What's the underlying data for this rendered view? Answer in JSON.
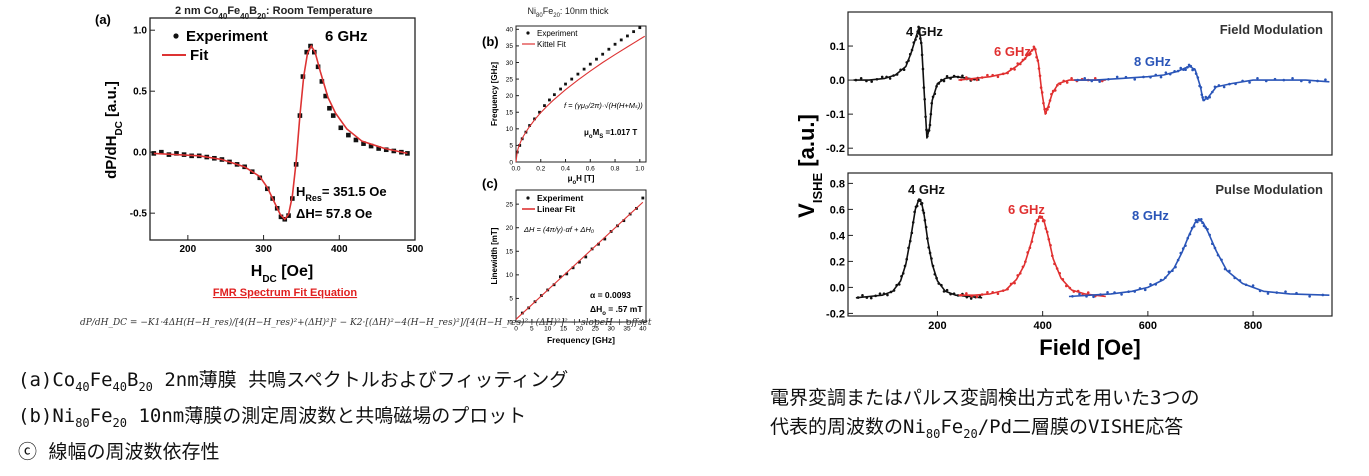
{
  "left_figure": {
    "panel_a": {
      "panel_label": "(a)",
      "title_pre": "2 nm Co",
      "title_sub1": "40",
      "title_mid": "Fe",
      "title_sub2": "40",
      "title_b": "B",
      "title_sub3": "20",
      "title_post": ": Room Temperature",
      "legend_experiment": "Experiment",
      "legend_fit": "Fit",
      "frequency_label": "6 GHz",
      "hres_pre": "H",
      "hres_sub": "Res",
      "hres_post": "= 351.5 Oe",
      "dh_text": "ΔH= 57.8 Oe",
      "ylabel": "dP/dH",
      "ylabel_sub": "DC",
      "ylabel_post": " [a.u.]",
      "xlabel": "H",
      "xlabel_sub": "DC",
      "xlabel_post": " [Oe]",
      "fit_equation_link": "FMR Spectrum Fit Equation"
    },
    "panel_b": {
      "panel_label": "(b)",
      "title_pre": "Ni",
      "title_sub1": "80",
      "title_mid": "Fe",
      "title_sub2": "20",
      "title_post": ": 10nm thick",
      "legend_experiment": "Experiment",
      "legend_fit": "Kittel Fit",
      "equation": "f = (γμ₀/2π)·√(H(H+Mₛ))",
      "ms_pre": "μ",
      "ms_sub1": "o",
      "ms_mid": "M",
      "ms_sub2": "S",
      "ms_post": " =1.017 T",
      "ylabel": "Frequency [GHz]",
      "xlabel_pre": "μ",
      "xlabel_sub": "o",
      "xlabel_post": "H [T]"
    },
    "panel_c": {
      "panel_label": "(c)",
      "legend_experiment": "Experiment",
      "legend_fit": "Linear Fit",
      "equation": "ΔH = (4π/γ)·αf + ΔH₀",
      "alpha_text": "α = 0.0093",
      "dh0_pre": "ΔH",
      "dh0_sub": "o",
      "dh0_post": " = .57 mT",
      "ylabel": "Linewidth [mT]",
      "xlabel": "Frequency [GHz]"
    },
    "bottom_equation": "dP/dH_DC = −K1·4ΔH(H−H_res)/[4(H−H_res)²+(ΔH)²]² − K2·[(ΔH)²−4(H−H_res)²]/[4(H−H_res)²+(ΔH)²]² + slopeH + offset"
  },
  "right_figure": {
    "top_title": "Field Modulation",
    "bottom_title": "Pulse Modulation",
    "ylabel_pre": "V",
    "ylabel_sub": "ISHE",
    "ylabel_post": " [a.u.]",
    "xlabel": "Field [Oe]",
    "freq_labels": [
      "4 GHz",
      "6 GHz",
      "8 GHz"
    ],
    "colors": {
      "4 GHz": "#111111",
      "6 GHz": "#e03030",
      "8 GHz": "#2a55b8"
    }
  },
  "captions": {
    "left_line1_pre": "(a)Co",
    "left_line1_s1": "40",
    "left_line1_m1": "Fe",
    "left_line1_s2": "40",
    "left_line1_m2": "B",
    "left_line1_s3": "20",
    "left_line1_post": " 2nm薄膜 共鳴スペクトルおよびフィッティング",
    "left_line2_pre": "(b)Ni",
    "left_line2_s1": "80",
    "left_line2_m1": "Fe",
    "left_line2_s2": "20",
    "left_line2_post": " 10nm薄膜の測定周波数と共鳴磁場のプロット",
    "left_line3": "ⓒ 線幅の周波数依存性",
    "right_line1": "電界変調またはパルス変調検出方式を用いた3つの",
    "right_line2_pre": "代表的周波数のNi",
    "right_line2_s1": "80",
    "right_line2_m1": "Fe",
    "right_line2_s2": "20",
    "right_line2_post": "/Pd二層膜のVISHE応答"
  },
  "chart_data": [
    {
      "id": "a",
      "type": "line",
      "title": "2 nm Co40Fe40B20: Room Temperature",
      "xlabel": "HDC [Oe]",
      "ylabel": "dP/dHDC [a.u.]",
      "xlim": [
        150,
        500
      ],
      "ylim": [
        -0.72,
        1.1
      ],
      "xticks": [
        200,
        300,
        400,
        500
      ],
      "yticks": [
        -0.5,
        0.0,
        0.5,
        1.0
      ],
      "ytick_labels": [
        "-0.5",
        "0.0",
        "0.5",
        "1.0"
      ],
      "series": [
        {
          "name": "Experiment",
          "style": "points",
          "x": [
            155,
            165,
            175,
            185,
            195,
            205,
            215,
            225,
            235,
            245,
            255,
            265,
            275,
            285,
            295,
            305,
            312,
            318,
            323,
            328,
            333,
            338,
            343,
            348,
            352,
            357,
            362,
            367,
            372,
            377,
            382,
            387,
            392,
            402,
            412,
            422,
            432,
            442,
            452,
            462,
            472,
            482,
            490
          ],
          "y": [
            -0.01,
            0.0,
            -0.02,
            -0.01,
            -0.02,
            -0.03,
            -0.03,
            -0.04,
            -0.05,
            -0.06,
            -0.08,
            -0.1,
            -0.12,
            -0.16,
            -0.21,
            -0.3,
            -0.38,
            -0.46,
            -0.53,
            -0.55,
            -0.52,
            -0.38,
            -0.1,
            0.3,
            0.62,
            0.82,
            0.87,
            0.82,
            0.7,
            0.58,
            0.46,
            0.36,
            0.3,
            0.2,
            0.14,
            0.1,
            0.07,
            0.05,
            0.03,
            0.02,
            0.01,
            0.0,
            -0.01
          ]
        },
        {
          "name": "Fit",
          "style": "line",
          "x": [
            155,
            185,
            215,
            245,
            275,
            295,
            305,
            315,
            322,
            328,
            333,
            338,
            343,
            348,
            353,
            358,
            363,
            368,
            375,
            385,
            395,
            410,
            430,
            460,
            490
          ],
          "y": [
            -0.01,
            -0.02,
            -0.03,
            -0.06,
            -0.12,
            -0.2,
            -0.29,
            -0.42,
            -0.51,
            -0.55,
            -0.51,
            -0.36,
            -0.08,
            0.3,
            0.62,
            0.81,
            0.87,
            0.82,
            0.66,
            0.45,
            0.32,
            0.19,
            0.09,
            0.03,
            -0.01
          ]
        }
      ]
    },
    {
      "id": "b",
      "type": "line",
      "title": "Ni80Fe20: 10nm thick",
      "xlabel": "μoH [T]",
      "ylabel": "Frequency [GHz]",
      "xlim": [
        0,
        1.05
      ],
      "ylim": [
        0,
        41
      ],
      "xticks": [
        0.0,
        0.2,
        0.4,
        0.6,
        0.8,
        1.0
      ],
      "xtick_labels": [
        "0.0",
        "0.2",
        "0.4",
        "0.6",
        "0.8",
        "1.0"
      ],
      "yticks": [
        0,
        5,
        10,
        15,
        20,
        25,
        30,
        35,
        40
      ],
      "series": [
        {
          "name": "Experiment",
          "style": "points",
          "x": [
            0.01,
            0.03,
            0.05,
            0.08,
            0.11,
            0.15,
            0.19,
            0.23,
            0.27,
            0.31,
            0.36,
            0.4,
            0.45,
            0.5,
            0.55,
            0.6,
            0.65,
            0.7,
            0.75,
            0.8,
            0.85,
            0.9,
            0.95,
            1.0
          ],
          "y": [
            3,
            5,
            7,
            9,
            11,
            13,
            15,
            17,
            18.7,
            20.3,
            22,
            23.5,
            25,
            26.5,
            28,
            29.5,
            31,
            32.5,
            34,
            35.5,
            36.8,
            38,
            39.3,
            40.5
          ]
        },
        {
          "name": "Kittel Fit",
          "style": "line",
          "x": [
            0.0,
            0.01,
            0.02,
            0.04,
            0.06,
            0.08,
            0.1,
            0.15,
            0.2,
            0.25,
            0.3,
            0.4,
            0.5,
            0.6,
            0.7,
            0.8,
            0.9,
            1.0,
            1.04
          ],
          "y": [
            0,
            3.1,
            4.4,
            6.3,
            7.8,
            9.0,
            10.2,
            12.7,
            14.9,
            16.8,
            18.6,
            21.8,
            24.7,
            27.4,
            30.0,
            32.4,
            34.7,
            37.0,
            37.9
          ]
        }
      ]
    },
    {
      "id": "c",
      "type": "line",
      "xlabel": "Frequency [GHz]",
      "ylabel": "Linewidth [mT]",
      "xlim": [
        0,
        41
      ],
      "ylim": [
        0,
        28
      ],
      "xticks": [
        0,
        5,
        10,
        15,
        20,
        25,
        30,
        35,
        40
      ],
      "yticks": [
        0,
        5,
        10,
        15,
        20,
        25
      ],
      "series": [
        {
          "name": "Experiment",
          "style": "points",
          "x": [
            2,
            4,
            6,
            8,
            10,
            12,
            14,
            16,
            18,
            20,
            22,
            24,
            26,
            28,
            30,
            32,
            34,
            36,
            38,
            40
          ],
          "y": [
            1.9,
            3.0,
            4.3,
            5.6,
            6.8,
            7.9,
            9.6,
            10.2,
            11.5,
            12.7,
            13.8,
            15.5,
            16.5,
            17.6,
            19.2,
            20.4,
            21.5,
            22.9,
            24.1,
            26.3
          ]
        },
        {
          "name": "Linear Fit",
          "style": "line",
          "x": [
            0,
            40
          ],
          "y": [
            0.57,
            25.4
          ]
        }
      ]
    },
    {
      "id": "field_modulation",
      "type": "line",
      "title": "Field Modulation",
      "xlabel": "Field [Oe]",
      "ylabel": "VISHE [a.u.]",
      "xlim": [
        30,
        950
      ],
      "ylim": [
        -0.22,
        0.2
      ],
      "yticks": [
        -0.2,
        -0.1,
        0.0,
        0.1
      ],
      "ytick_labels": [
        "-0.2",
        "-0.1",
        "0.0",
        "0.1"
      ],
      "series": [
        {
          "name": "4 GHz",
          "color": "#111111",
          "x": [
            40,
            70,
            100,
            120,
            140,
            150,
            160,
            165,
            170,
            175,
            180,
            185,
            190,
            200,
            215,
            235,
            260,
            280
          ],
          "y": [
            0.0,
            0.0,
            0.005,
            0.015,
            0.04,
            0.08,
            0.13,
            0.155,
            0.1,
            -0.04,
            -0.17,
            -0.14,
            -0.06,
            -0.01,
            0.005,
            0.01,
            0.005,
            0.0
          ]
        },
        {
          "name": "6 GHz",
          "color": "#e03030",
          "x": [
            240,
            270,
            300,
            330,
            350,
            365,
            375,
            385,
            392,
            398,
            405,
            410,
            418,
            430,
            450,
            480,
            520
          ],
          "y": [
            0.0,
            0.005,
            0.01,
            0.02,
            0.04,
            0.06,
            0.08,
            0.095,
            0.05,
            -0.03,
            -0.1,
            -0.08,
            -0.04,
            -0.01,
            0.0,
            0.0,
            0.0
          ]
        },
        {
          "name": "8 GHz",
          "color": "#2a55b8",
          "x": [
            460,
            500,
            550,
            600,
            630,
            655,
            670,
            680,
            690,
            700,
            705,
            715,
            730,
            760,
            800,
            850,
            900,
            945
          ],
          "y": [
            0.0,
            0.0,
            0.005,
            0.01,
            0.015,
            0.025,
            0.035,
            0.04,
            0.03,
            -0.02,
            -0.06,
            -0.05,
            -0.02,
            -0.01,
            0.0,
            0.0,
            0.0,
            -0.005
          ]
        }
      ]
    },
    {
      "id": "pulse_modulation",
      "type": "line",
      "title": "Pulse Modulation",
      "xlabel": "Field [Oe]",
      "ylabel": "VISHE [a.u.]",
      "xlim": [
        30,
        950
      ],
      "ylim": [
        -0.22,
        0.88
      ],
      "xticks": [
        200,
        400,
        600,
        800
      ],
      "yticks": [
        -0.2,
        0.0,
        0.2,
        0.4,
        0.6,
        0.8
      ],
      "ytick_labels": [
        "-0.2",
        "0.0",
        "0.2",
        "0.4",
        "0.6",
        "0.8"
      ],
      "series": [
        {
          "name": "4 GHz",
          "color": "#111111",
          "x": [
            45,
            70,
            95,
            115,
            130,
            140,
            150,
            158,
            165,
            170,
            175,
            182,
            190,
            200,
            215,
            235,
            260,
            285
          ],
          "y": [
            -0.08,
            -0.07,
            -0.06,
            -0.03,
            0.05,
            0.18,
            0.4,
            0.6,
            0.68,
            0.65,
            0.55,
            0.35,
            0.18,
            0.05,
            -0.03,
            -0.06,
            -0.07,
            -0.08
          ]
        },
        {
          "name": "6 GHz",
          "color": "#e03030",
          "x": [
            240,
            270,
            300,
            330,
            350,
            365,
            378,
            388,
            395,
            402,
            410,
            420,
            435,
            455,
            480,
            520
          ],
          "y": [
            -0.06,
            -0.06,
            -0.05,
            -0.02,
            0.06,
            0.17,
            0.34,
            0.5,
            0.55,
            0.52,
            0.4,
            0.22,
            0.07,
            -0.02,
            -0.05,
            -0.07
          ]
        },
        {
          "name": "8 GHz",
          "color": "#2a55b8",
          "x": [
            450,
            490,
            530,
            570,
            600,
            630,
            650,
            665,
            678,
            690,
            698,
            705,
            715,
            730,
            750,
            780,
            820,
            870,
            945
          ],
          "y": [
            -0.07,
            -0.06,
            -0.05,
            -0.03,
            0.0,
            0.06,
            0.15,
            0.27,
            0.4,
            0.5,
            0.52,
            0.5,
            0.42,
            0.28,
            0.13,
            0.03,
            -0.03,
            -0.05,
            -0.06
          ]
        }
      ]
    }
  ]
}
